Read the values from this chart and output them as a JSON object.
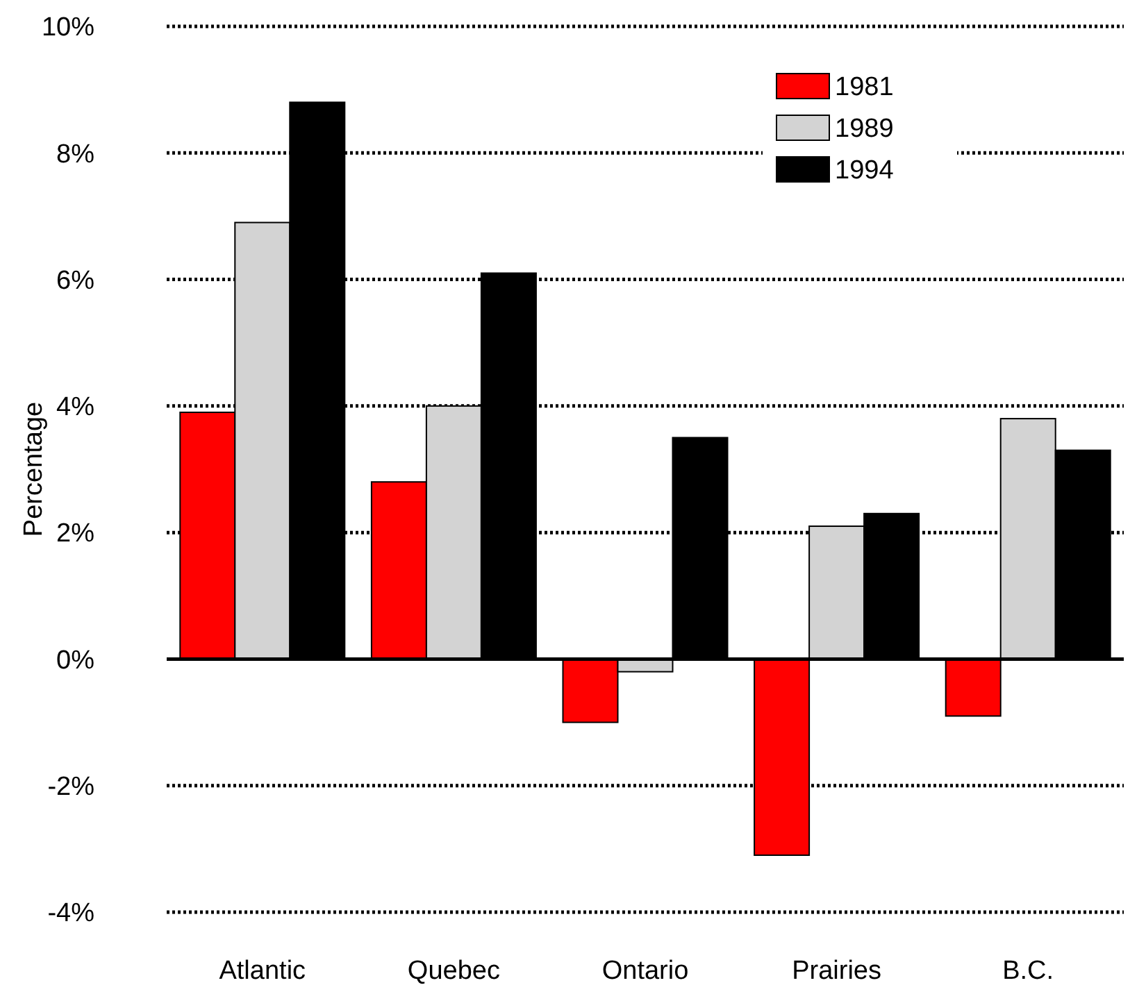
{
  "chart_data": {
    "type": "bar",
    "ylabel": "Percentage",
    "categories": [
      "Atlantic",
      "Quebec",
      "Ontario",
      "Prairies",
      "B.C."
    ],
    "series": [
      {
        "name": "1981",
        "color": "#ff0000",
        "values": [
          3.9,
          2.8,
          -1.0,
          -3.1,
          -0.9
        ]
      },
      {
        "name": "1989",
        "color": "#d3d3d3",
        "values": [
          6.9,
          4.0,
          -0.2,
          2.1,
          3.8
        ]
      },
      {
        "name": "1994",
        "color": "#000000",
        "values": [
          8.8,
          6.1,
          3.5,
          2.3,
          3.3
        ]
      }
    ],
    "ylim": [
      -4,
      10
    ],
    "yticks": [
      {
        "value": -4,
        "label": "-4%"
      },
      {
        "value": -2,
        "label": "-2%"
      },
      {
        "value": 0,
        "label": "0%"
      },
      {
        "value": 2,
        "label": "2%"
      },
      {
        "value": 4,
        "label": "4%"
      },
      {
        "value": 6,
        "label": "6%"
      },
      {
        "value": 8,
        "label": "8%"
      },
      {
        "value": 10,
        "label": "10%"
      }
    ],
    "grid": "y",
    "legend": "top right"
  }
}
